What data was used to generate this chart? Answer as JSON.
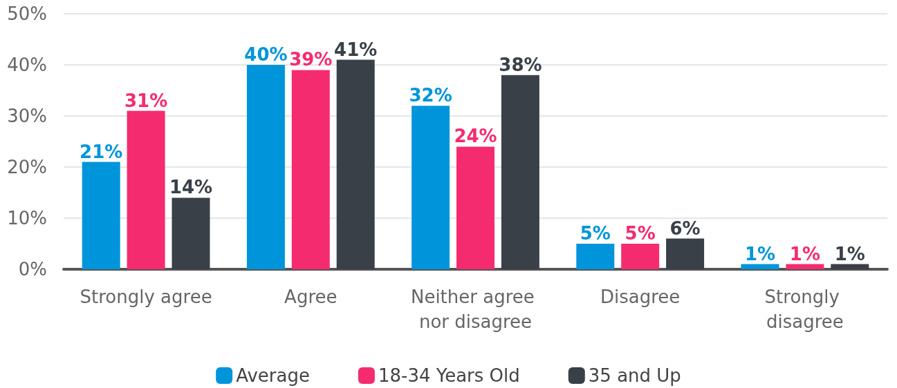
{
  "chart_data": {
    "type": "bar",
    "categories": [
      "Strongly agree",
      "Agree",
      "Neither agree nor disagree",
      "Disagree",
      "Strongly disagree"
    ],
    "series": [
      {
        "name": "Average",
        "color": "#0095db",
        "values": [
          21,
          40,
          32,
          5,
          1
        ],
        "value_labels": [
          "21%",
          "40%",
          "32%",
          "5%",
          "1%"
        ]
      },
      {
        "name": "18-34 Years Old",
        "color": "#f52b70",
        "values": [
          31,
          39,
          24,
          5,
          1
        ],
        "value_labels": [
          "31%",
          "39%",
          "24%",
          "5%",
          "1%"
        ]
      },
      {
        "name": "35 and Up",
        "color": "#394048",
        "values": [
          14,
          41,
          38,
          6,
          1
        ],
        "value_labels": [
          "14%",
          "41%",
          "38%",
          "6%",
          "1%"
        ]
      }
    ],
    "ylim": [
      0,
      50
    ],
    "yticks": [
      {
        "value": 0,
        "label": "0%"
      },
      {
        "value": 10,
        "label": "10%"
      },
      {
        "value": 20,
        "label": "20%"
      },
      {
        "value": 30,
        "label": "30%"
      },
      {
        "value": 40,
        "label": "40%"
      },
      {
        "value": 50,
        "label": "50%"
      }
    ],
    "grid": "y",
    "legend": "bottom"
  }
}
